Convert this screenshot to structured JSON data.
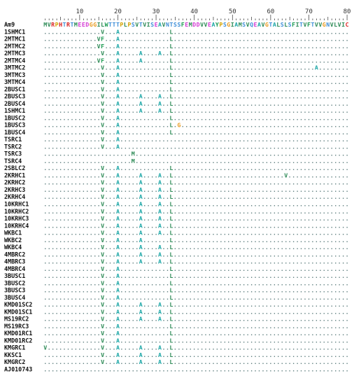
{
  "alignment": {
    "ruler_numbers": [
      10,
      20,
      30,
      40,
      50,
      60,
      70,
      80
    ],
    "reference": {
      "name": "Am9",
      "sequence": "MVRPHTRTMEEDGGILWTTTPLPSVTVISEAVNTSSFEMDDVVEAYPSGIAMSVQEAVGTALSLSFITVFTVVGNVLVIC"
    },
    "rows": [
      {
        "name": "1SHMC1",
        "subs": [
          [
            16,
            "V"
          ],
          [
            20,
            "A"
          ],
          [
            34,
            "L"
          ]
        ]
      },
      {
        "name": "2MTMC1",
        "subs": [
          [
            15,
            "V"
          ],
          [
            16,
            "F"
          ],
          [
            20,
            "A"
          ],
          [
            34,
            "L"
          ]
        ]
      },
      {
        "name": "2MTMC2",
        "subs": [
          [
            15,
            "V"
          ],
          [
            16,
            "F"
          ],
          [
            20,
            "A"
          ],
          [
            34,
            "L"
          ]
        ]
      },
      {
        "name": "2MTMC3",
        "subs": [
          [
            16,
            "V"
          ],
          [
            20,
            "A"
          ],
          [
            26,
            "A"
          ],
          [
            31,
            "A"
          ],
          [
            34,
            "L"
          ]
        ]
      },
      {
        "name": "2MTMC4",
        "subs": [
          [
            15,
            "V"
          ],
          [
            16,
            "F"
          ],
          [
            20,
            "A"
          ],
          [
            26,
            "A"
          ],
          [
            34,
            "L"
          ]
        ]
      },
      {
        "name": "3MTMC2",
        "subs": [
          [
            16,
            "V"
          ],
          [
            20,
            "A"
          ],
          [
            34,
            "L"
          ],
          [
            72,
            "A"
          ]
        ]
      },
      {
        "name": "3MTMC3",
        "subs": [
          [
            16,
            "V"
          ],
          [
            20,
            "A"
          ],
          [
            34,
            "L"
          ]
        ]
      },
      {
        "name": "3MTMC4",
        "subs": [
          [
            16,
            "V"
          ],
          [
            20,
            "A"
          ],
          [
            34,
            "L"
          ]
        ]
      },
      {
        "name": "2BUSC1",
        "subs": [
          [
            16,
            "V"
          ],
          [
            20,
            "A"
          ],
          [
            34,
            "L"
          ]
        ]
      },
      {
        "name": "2BUSC3",
        "subs": [
          [
            16,
            "V"
          ],
          [
            20,
            "A"
          ],
          [
            26,
            "A"
          ],
          [
            31,
            "A"
          ],
          [
            34,
            "L"
          ]
        ]
      },
      {
        "name": "2BUSC4",
        "subs": [
          [
            16,
            "V"
          ],
          [
            20,
            "A"
          ],
          [
            26,
            "A"
          ],
          [
            31,
            "A"
          ],
          [
            34,
            "L"
          ]
        ]
      },
      {
        "name": "1SHMC1",
        "subs": [
          [
            16,
            "V"
          ],
          [
            20,
            "A"
          ],
          [
            26,
            "A"
          ],
          [
            31,
            "A"
          ],
          [
            34,
            "L"
          ]
        ]
      },
      {
        "name": "1BUSC2",
        "subs": [
          [
            16,
            "V"
          ],
          [
            20,
            "A"
          ],
          [
            34,
            "L"
          ]
        ]
      },
      {
        "name": "1BUSC3",
        "subs": [
          [
            16,
            "V"
          ],
          [
            20,
            "A"
          ],
          [
            34,
            "L"
          ],
          [
            36,
            "G"
          ]
        ]
      },
      {
        "name": "1BUSC4",
        "subs": [
          [
            16,
            "V"
          ],
          [
            20,
            "A"
          ],
          [
            34,
            "L"
          ]
        ]
      },
      {
        "name": "TSRC1",
        "subs": [
          [
            16,
            "V"
          ],
          [
            20,
            "A"
          ]
        ]
      },
      {
        "name": "TSRC2",
        "subs": [
          [
            16,
            "V"
          ],
          [
            20,
            "A"
          ]
        ]
      },
      {
        "name": "TSRC3",
        "subs": [
          [
            24,
            "M"
          ]
        ]
      },
      {
        "name": "TSRC4",
        "subs": [
          [
            24,
            "M"
          ]
        ]
      },
      {
        "name": "2SBLC2",
        "subs": [
          [
            16,
            "V"
          ],
          [
            20,
            "A"
          ],
          [
            34,
            "L"
          ]
        ]
      },
      {
        "name": "2KRHC1",
        "subs": [
          [
            16,
            "V"
          ],
          [
            20,
            "A"
          ],
          [
            26,
            "A"
          ],
          [
            31,
            "A"
          ],
          [
            34,
            "L"
          ],
          [
            64,
            "V"
          ]
        ]
      },
      {
        "name": "2KRHC2",
        "subs": [
          [
            16,
            "V"
          ],
          [
            20,
            "A"
          ],
          [
            26,
            "A"
          ],
          [
            31,
            "A"
          ],
          [
            34,
            "L"
          ]
        ]
      },
      {
        "name": "2KRHC3",
        "subs": [
          [
            16,
            "V"
          ],
          [
            20,
            "A"
          ],
          [
            26,
            "A"
          ],
          [
            31,
            "A"
          ],
          [
            34,
            "L"
          ]
        ]
      },
      {
        "name": "2KRHC4",
        "subs": [
          [
            16,
            "V"
          ],
          [
            20,
            "A"
          ],
          [
            26,
            "A"
          ],
          [
            31,
            "A"
          ],
          [
            34,
            "L"
          ]
        ]
      },
      {
        "name": "10KRHC1",
        "subs": [
          [
            16,
            "V"
          ],
          [
            20,
            "A"
          ],
          [
            26,
            "A"
          ],
          [
            31,
            "A"
          ],
          [
            34,
            "L"
          ]
        ]
      },
      {
        "name": "10KRHC2",
        "subs": [
          [
            16,
            "V"
          ],
          [
            20,
            "A"
          ],
          [
            26,
            "A"
          ],
          [
            31,
            "A"
          ],
          [
            34,
            "L"
          ]
        ]
      },
      {
        "name": "10KRHC3",
        "subs": [
          [
            16,
            "V"
          ],
          [
            20,
            "A"
          ],
          [
            26,
            "A"
          ],
          [
            31,
            "A"
          ],
          [
            34,
            "L"
          ]
        ]
      },
      {
        "name": "10KRHC4",
        "subs": [
          [
            16,
            "V"
          ],
          [
            20,
            "A"
          ],
          [
            26,
            "A"
          ],
          [
            31,
            "A"
          ],
          [
            34,
            "L"
          ]
        ]
      },
      {
        "name": "WKBC1",
        "subs": [
          [
            16,
            "V"
          ],
          [
            20,
            "A"
          ],
          [
            26,
            "A"
          ],
          [
            31,
            "A"
          ],
          [
            34,
            "L"
          ]
        ]
      },
      {
        "name": "WKBC2",
        "subs": [
          [
            16,
            "V"
          ],
          [
            20,
            "A"
          ],
          [
            26,
            "A"
          ],
          [
            34,
            "L"
          ]
        ]
      },
      {
        "name": "WKBC4",
        "subs": [
          [
            16,
            "V"
          ],
          [
            20,
            "A"
          ],
          [
            26,
            "A"
          ],
          [
            31,
            "A"
          ],
          [
            34,
            "L"
          ]
        ]
      },
      {
        "name": "4MBRC2",
        "subs": [
          [
            16,
            "V"
          ],
          [
            20,
            "A"
          ],
          [
            26,
            "A"
          ],
          [
            31,
            "A"
          ],
          [
            34,
            "L"
          ]
        ]
      },
      {
        "name": "4MBRC3",
        "subs": [
          [
            16,
            "V"
          ],
          [
            20,
            "A"
          ],
          [
            26,
            "A"
          ],
          [
            31,
            "A"
          ],
          [
            34,
            "L"
          ]
        ]
      },
      {
        "name": "4MBRC4",
        "subs": [
          [
            16,
            "V"
          ],
          [
            20,
            "A"
          ],
          [
            34,
            "L"
          ]
        ]
      },
      {
        "name": "3BUSC1",
        "subs": [
          [
            16,
            "V"
          ],
          [
            20,
            "A"
          ],
          [
            34,
            "L"
          ]
        ]
      },
      {
        "name": "3BUSC2",
        "subs": [
          [
            16,
            "V"
          ],
          [
            20,
            "A"
          ],
          [
            34,
            "L"
          ]
        ]
      },
      {
        "name": "3BUSC3",
        "subs": [
          [
            16,
            "V"
          ],
          [
            20,
            "A"
          ],
          [
            34,
            "L"
          ]
        ]
      },
      {
        "name": "3BUSC4",
        "subs": [
          [
            16,
            "V"
          ],
          [
            20,
            "A"
          ],
          [
            34,
            "L"
          ]
        ]
      },
      {
        "name": "KMD01SC2",
        "subs": [
          [
            16,
            "V"
          ],
          [
            20,
            "A"
          ],
          [
            26,
            "A"
          ],
          [
            31,
            "A"
          ],
          [
            34,
            "L"
          ]
        ]
      },
      {
        "name": "KMD01SC1",
        "subs": [
          [
            16,
            "V"
          ],
          [
            20,
            "A"
          ],
          [
            26,
            "A"
          ],
          [
            31,
            "A"
          ],
          [
            34,
            "L"
          ]
        ]
      },
      {
        "name": "MS19RC2",
        "subs": [
          [
            16,
            "V"
          ],
          [
            20,
            "A"
          ],
          [
            26,
            "A"
          ],
          [
            31,
            "A"
          ],
          [
            34,
            "L"
          ]
        ]
      },
      {
        "name": "MS19RC3",
        "subs": [
          [
            16,
            "V"
          ],
          [
            20,
            "A"
          ],
          [
            34,
            "L"
          ]
        ]
      },
      {
        "name": "KMD01RC1",
        "subs": [
          [
            16,
            "V"
          ],
          [
            20,
            "A"
          ],
          [
            34,
            "L"
          ]
        ]
      },
      {
        "name": "KMD01RC2",
        "subs": [
          [
            16,
            "V"
          ],
          [
            20,
            "A"
          ],
          [
            34,
            "L"
          ]
        ]
      },
      {
        "name": "KMGRC1",
        "subs": [
          [
            1,
            "V"
          ],
          [
            16,
            "V"
          ],
          [
            20,
            "A"
          ],
          [
            26,
            "A"
          ],
          [
            31,
            "A"
          ],
          [
            34,
            "L"
          ]
        ]
      },
      {
        "name": "KKSC1",
        "subs": [
          [
            16,
            "V"
          ],
          [
            20,
            "A"
          ],
          [
            26,
            "A"
          ],
          [
            31,
            "A"
          ],
          [
            34,
            "L"
          ]
        ]
      },
      {
        "name": "KMGRC2",
        "subs": [
          [
            16,
            "V"
          ],
          [
            20,
            "A"
          ],
          [
            26,
            "A"
          ],
          [
            31,
            "A"
          ],
          [
            34,
            "L"
          ]
        ]
      },
      {
        "name": "AJ010743",
        "subs": []
      }
    ],
    "colors": {
      "A": "#1aa5a5",
      "I": "#2e8b57",
      "L": "#2e8b57",
      "V": "#2e8b57",
      "M": "#2e8b57",
      "F": "#1a9a50",
      "W": "#1a9a50",
      "Y": "#1a9a50",
      "G": "#e89a1e",
      "P": "#d4a300",
      "S": "#3f8fd8",
      "T": "#3f8fd8",
      "N": "#3f8fd8",
      "Q": "#3f8fd8",
      "D": "#d43bd4",
      "E": "#d43bd4",
      "R": "#d62020",
      "K": "#d62020",
      "H": "#d62020",
      "C": "#e02828",
      "dot": "#5f7f7f"
    }
  }
}
